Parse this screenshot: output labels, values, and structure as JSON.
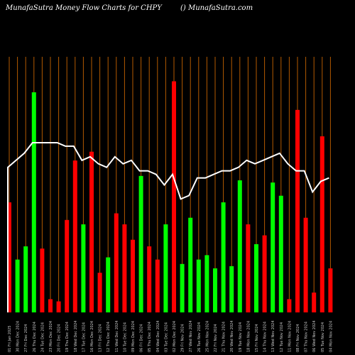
{
  "header": {
    "title": "MunafaSutra  Money Flow  Charts for CHPY",
    "site": "() MunafaSutra.com"
  },
  "chart_data": {
    "type": "bar",
    "title": "MunafaSutra  Money Flow  Charts for CHPY",
    "xlabel": "",
    "ylabel": "",
    "ylim": [
      0,
      100
    ],
    "grid": true,
    "legend": "none",
    "colors": {
      "up": "#00ff00",
      "down": "#ff0000",
      "grid": "#b35a00",
      "line": "#ffffff",
      "background": "#000000"
    },
    "categories": [
      "01 Fri Jan 2025",
      "30 Mon Dec 2024",
      "27 Fri Dec 2024",
      "26 Thu Dec 2024",
      "24 Tue Dec 2024",
      "23 Mon Dec 2024",
      "20 Fri Dec 2024",
      "19 Thu Dec 2024",
      "18 Wed Dec 2024",
      "17 Tue Dec 2024",
      "16 Mon Dec 2024",
      "13 Fri Dec 2024",
      "12 Thu Dec 2024",
      "11 Wed Dec 2024",
      "10 Tue Dec 2024",
      "09 Mon Dec 2024",
      "06 Fri Dec 2024",
      "05 Thu Dec 2024",
      "04 Wed Dec 2024",
      "03 Tue Dec 2024",
      "02 Mon Dec 2024",
      "29 Fri Nov 2024",
      "27 Wed Nov 2024",
      "26 Tue Nov 2024",
      "25 Mon Nov 2024",
      "22 Fri Nov 2024",
      "21 Thu Nov 2024",
      "20 Wed Nov 2024",
      "19 Tue Nov 2024",
      "18 Mon Nov 2024",
      "15 Fri Nov 2024",
      "14 Thu Nov 2024",
      "13 Wed Nov 2024",
      "12 Tue Nov 2024",
      "11 Mon Nov 2024",
      "08 Fri Nov 2024",
      "07 Thu Nov 2024",
      "06 Wed Nov 2024",
      "05 Tue Nov 2024",
      "04 Mon Nov 2024"
    ],
    "bars": [
      {
        "value": 50,
        "dir": "down"
      },
      {
        "value": 24,
        "dir": "up"
      },
      {
        "value": 30,
        "dir": "up"
      },
      {
        "value": 100,
        "dir": "up"
      },
      {
        "value": 29,
        "dir": "down"
      },
      {
        "value": 6,
        "dir": "down"
      },
      {
        "value": 5,
        "dir": "down"
      },
      {
        "value": 42,
        "dir": "down"
      },
      {
        "value": 69,
        "dir": "down"
      },
      {
        "value": 40,
        "dir": "up"
      },
      {
        "value": 73,
        "dir": "down"
      },
      {
        "value": 18,
        "dir": "down"
      },
      {
        "value": 25,
        "dir": "up"
      },
      {
        "value": 45,
        "dir": "down"
      },
      {
        "value": 40,
        "dir": "down"
      },
      {
        "value": 33,
        "dir": "down"
      },
      {
        "value": 62,
        "dir": "up"
      },
      {
        "value": 30,
        "dir": "down"
      },
      {
        "value": 24,
        "dir": "down"
      },
      {
        "value": 40,
        "dir": "up"
      },
      {
        "value": 105,
        "dir": "down"
      },
      {
        "value": 22,
        "dir": "up"
      },
      {
        "value": 43,
        "dir": "up"
      },
      {
        "value": 24,
        "dir": "up"
      },
      {
        "value": 26,
        "dir": "up"
      },
      {
        "value": 20,
        "dir": "up"
      },
      {
        "value": 50,
        "dir": "up"
      },
      {
        "value": 21,
        "dir": "up"
      },
      {
        "value": 60,
        "dir": "up"
      },
      {
        "value": 40,
        "dir": "down"
      },
      {
        "value": 31,
        "dir": "up"
      },
      {
        "value": 35,
        "dir": "down"
      },
      {
        "value": 59,
        "dir": "up"
      },
      {
        "value": 53,
        "dir": "up"
      },
      {
        "value": 6,
        "dir": "down"
      },
      {
        "value": 92,
        "dir": "down"
      },
      {
        "value": 43,
        "dir": "down"
      },
      {
        "value": 9,
        "dir": "down"
      },
      {
        "value": 80,
        "dir": "down"
      },
      {
        "value": 20,
        "dir": "down"
      }
    ],
    "line": [
      67,
      69,
      71,
      74,
      74,
      74,
      74,
      73,
      73,
      69,
      70,
      68,
      67,
      70,
      68,
      69,
      66,
      66,
      65,
      62,
      65,
      58,
      59,
      64,
      64,
      65,
      66,
      66,
      67,
      69,
      68,
      69,
      70,
      71,
      68,
      66,
      66,
      60,
      63,
      64
    ]
  }
}
